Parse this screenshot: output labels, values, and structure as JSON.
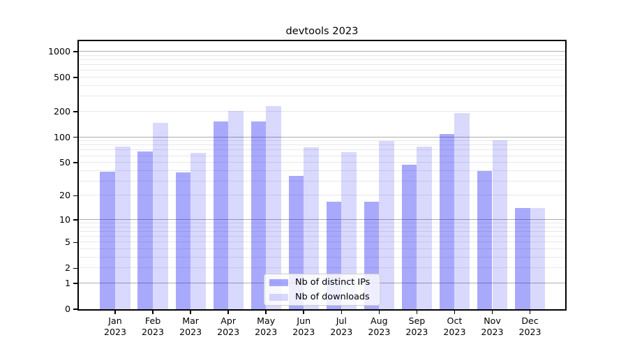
{
  "title": "devtools 2023",
  "colors": {
    "bar_distinct_ips": "rgba(10,10,245,0.35)",
    "bar_downloads": "rgba(10,10,245,0.155)",
    "grid_major": "#adadad",
    "grid_minor": "#e8e8e8",
    "spine": "#000000",
    "legend_border": "#cccccc",
    "legend_background": "rgba(255,255,255,0.8)",
    "text": "#000000"
  },
  "legend": {
    "items": [
      {
        "label": "Nb of distinct IPs",
        "swatch": "bar_distinct_ips"
      },
      {
        "label": "Nb of downloads",
        "swatch": "bar_downloads"
      }
    ],
    "position": "lower center"
  },
  "chart_data": {
    "type": "bar",
    "title": "devtools 2023",
    "scale": "symlog ln(1+x)",
    "grid": true,
    "legend_position": "lower center",
    "categories": [
      "Jan 2023",
      "Feb 2023",
      "Mar 2023",
      "Apr 2023",
      "May 2023",
      "Jun 2023",
      "Jul 2023",
      "Aug 2023",
      "Sep 2023",
      "Oct 2023",
      "Nov 2023",
      "Dec 2023"
    ],
    "series": [
      {
        "name": "Nb of distinct IPs",
        "values": [
          39,
          68,
          38,
          152,
          152,
          35,
          17,
          17,
          47,
          110,
          40,
          14
        ]
      },
      {
        "name": "Nb of downloads",
        "values": [
          78,
          148,
          65,
          203,
          230,
          76,
          67,
          90,
          78,
          192,
          92,
          14
        ]
      }
    ],
    "xlabel": "",
    "ylabel": "",
    "ylim": [
      0,
      1330
    ],
    "yticks": [
      0,
      1,
      2,
      5,
      10,
      20,
      50,
      100,
      200,
      500,
      1000
    ],
    "grid_major_values": [
      1,
      10,
      100,
      1000
    ],
    "grid_minor_values": [
      2,
      3,
      4,
      5,
      6,
      7,
      8,
      9,
      20,
      30,
      40,
      50,
      60,
      70,
      80,
      90,
      200,
      300,
      400,
      500,
      600,
      700,
      800,
      900
    ]
  }
}
